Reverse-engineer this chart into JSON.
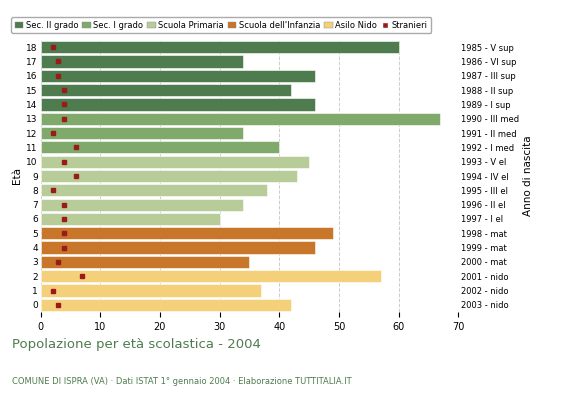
{
  "ages": [
    18,
    17,
    16,
    15,
    14,
    13,
    12,
    11,
    10,
    9,
    8,
    7,
    6,
    5,
    4,
    3,
    2,
    1,
    0
  ],
  "anno_nascita": [
    "1985 - V sup",
    "1986 - VI sup",
    "1987 - III sup",
    "1988 - II sup",
    "1989 - I sup",
    "1990 - III med",
    "1991 - II med",
    "1992 - I med",
    "1993 - V el",
    "1994 - IV el",
    "1995 - III el",
    "1996 - II el",
    "1997 - I el",
    "1998 - mat",
    "1999 - mat",
    "2000 - mat",
    "2001 - nido",
    "2002 - nido",
    "2003 - nido"
  ],
  "bar_values": [
    60,
    34,
    46,
    42,
    46,
    67,
    34,
    40,
    45,
    43,
    38,
    34,
    30,
    49,
    46,
    35,
    57,
    37,
    42
  ],
  "stranieri": [
    2,
    3,
    3,
    4,
    4,
    4,
    2,
    6,
    4,
    6,
    2,
    4,
    4,
    4,
    4,
    3,
    7,
    2,
    3
  ],
  "bar_colors": [
    "#4e7c4e",
    "#4e7c4e",
    "#4e7c4e",
    "#4e7c4e",
    "#4e7c4e",
    "#7faa6b",
    "#7faa6b",
    "#7faa6b",
    "#b8cc99",
    "#b8cc99",
    "#b8cc99",
    "#b8cc99",
    "#b8cc99",
    "#c8762a",
    "#c8762a",
    "#c8762a",
    "#f5d07a",
    "#f5d07a",
    "#f5d07a"
  ],
  "legend_labels": [
    "Sec. II grado",
    "Sec. I grado",
    "Scuola Primaria",
    "Scuola dell'Infanzia",
    "Asilo Nido",
    "Stranieri"
  ],
  "legend_colors": [
    "#4e7c4e",
    "#7faa6b",
    "#b8cc99",
    "#c8762a",
    "#f5d07a",
    "#9b1a1a"
  ],
  "stranieri_color": "#9b1a1a",
  "title": "Popolazione per età scolastica - 2004",
  "subtitle": "COMUNE DI ISPRA (VA) · Dati ISTAT 1° gennaio 2004 · Elaborazione TUTTITALIA.IT",
  "ylabel": "Età",
  "anno_label": "Anno di nascita",
  "xlim": [
    0,
    70
  ],
  "xticks": [
    0,
    10,
    20,
    30,
    40,
    50,
    60,
    70
  ],
  "grid_color": "#cccccc",
  "bg_color": "#ffffff",
  "title_color": "#4e7c4e",
  "subtitle_color": "#4e7c4e"
}
